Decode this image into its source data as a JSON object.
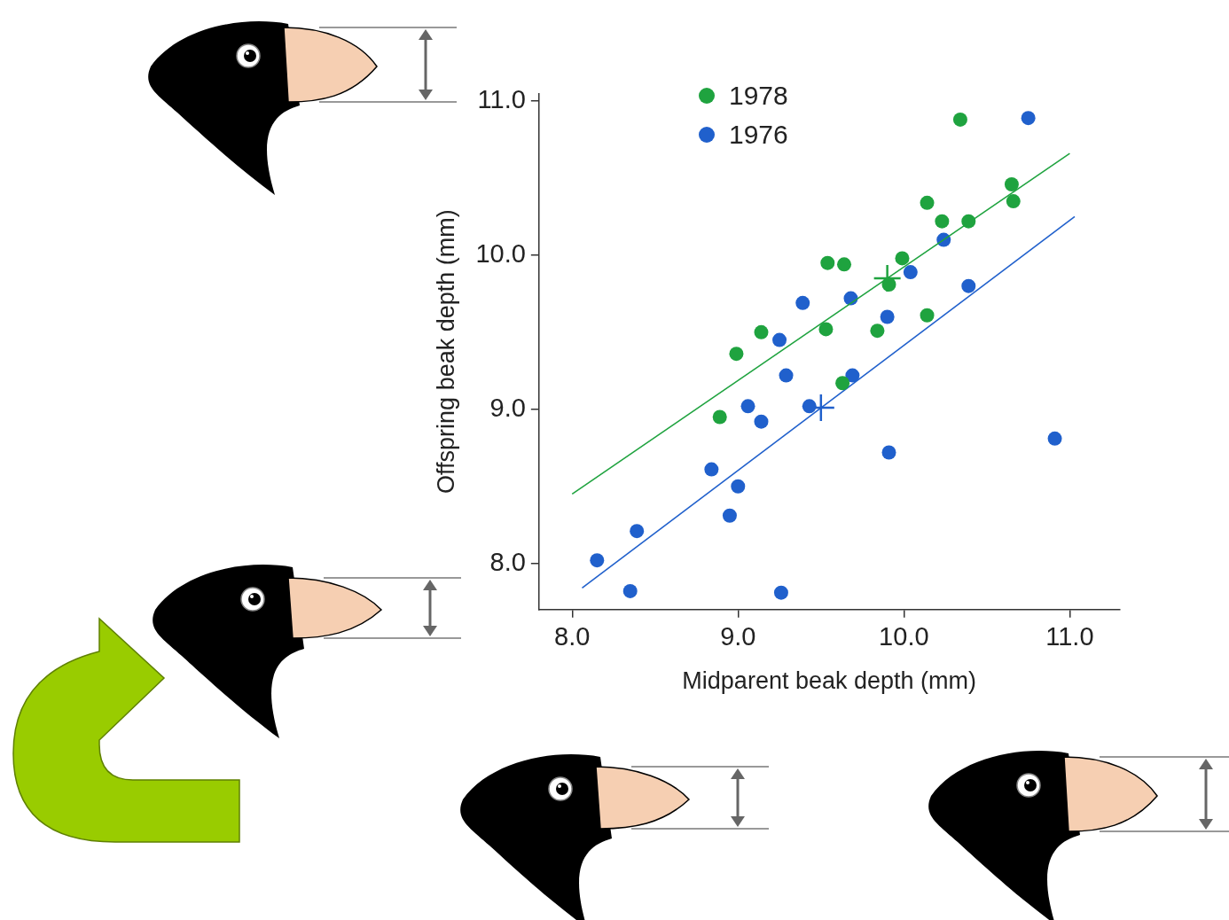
{
  "chart_data": {
    "type": "scatter",
    "x_label": "Midparent beak depth (mm)",
    "y_label": "Offspring beak depth (mm)",
    "xlim": [
      7.8,
      11.3
    ],
    "xticks": [
      {
        "value": 8,
        "label": "8.0"
      },
      {
        "value": 9,
        "label": "9.0"
      },
      {
        "value": 10,
        "label": "10.0"
      },
      {
        "value": 11,
        "label": "11.0"
      }
    ],
    "ylim": [
      7.7,
      11.05
    ],
    "yticks": [
      {
        "value": 8,
        "label": "8.0"
      },
      {
        "value": 9,
        "label": "9.0"
      },
      {
        "value": 10,
        "label": "10.0"
      },
      {
        "value": 11,
        "label": "11.0"
      }
    ],
    "grid": false,
    "legend": "top-left",
    "series": [
      {
        "name": "1978",
        "color": "#1fa33f",
        "marker": "circle",
        "x": [
          10.34,
          10.14,
          10.65,
          10.66,
          10.23,
          10.39,
          9.99,
          9.54,
          9.64,
          9.91,
          9.14,
          9.53,
          9.84,
          8.99,
          10.14,
          9.63,
          8.89
        ],
        "values": [
          10.88,
          10.34,
          10.46,
          10.35,
          10.22,
          10.22,
          9.98,
          9.95,
          9.94,
          9.81,
          9.5,
          9.52,
          9.51,
          9.36,
          9.61,
          9.17,
          8.95
        ],
        "fit": {
          "x": [
            8.0,
            11.0
          ],
          "values": [
            8.45,
            10.66
          ]
        },
        "mean": {
          "x": 9.9,
          "value": 9.85
        }
      },
      {
        "name": "1976",
        "color": "#2060cc",
        "marker": "circle",
        "x": [
          10.75,
          10.24,
          10.04,
          10.39,
          9.39,
          9.68,
          9.9,
          9.25,
          9.29,
          9.69,
          9.06,
          9.14,
          9.43,
          8.84,
          9.0,
          8.95,
          9.91,
          10.91,
          8.15,
          8.39,
          8.35,
          9.26
        ],
        "values": [
          10.89,
          10.1,
          9.89,
          9.8,
          9.69,
          9.72,
          9.6,
          9.45,
          9.22,
          9.22,
          9.02,
          8.92,
          9.02,
          8.61,
          8.5,
          8.31,
          8.72,
          8.81,
          8.02,
          8.21,
          7.82,
          7.81
        ],
        "fit": {
          "x": [
            8.06,
            11.03
          ],
          "values": [
            7.84,
            10.25
          ]
        },
        "mean": {
          "x": 9.5,
          "value": 9.01
        }
      }
    ]
  }
}
